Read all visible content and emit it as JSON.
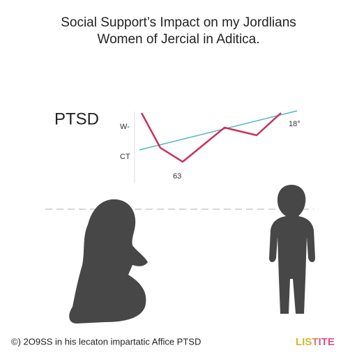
{
  "header": {
    "title_lines": [
      "Social Support’s Impact on my Jordlians",
      "Women of Jercial in Aditica."
    ]
  },
  "chart": {
    "label": "PTSD",
    "upper_mark": "W-",
    "lower_mark": "CT",
    "low_point": "63",
    "end_point": "18°"
  },
  "footer": {
    "caption": "©) 2O9SS in his lecaton impartatic Affice PTSD",
    "logo": "LISTITE"
  }
}
